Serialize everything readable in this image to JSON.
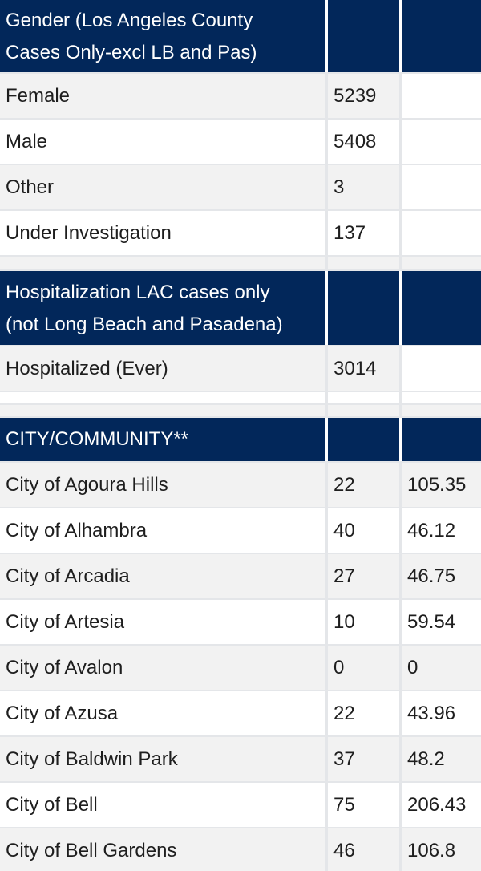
{
  "gender_section": {
    "header_line1": "Gender (Los Angeles County",
    "header_line2": "Cases Only-excl LB and Pas)",
    "rows": [
      {
        "label": "Female",
        "count": "5239",
        "rate": ""
      },
      {
        "label": "Male",
        "count": "5408",
        "rate": ""
      },
      {
        "label": "Other",
        "count": "3",
        "rate": ""
      },
      {
        "label": "Under Investigation",
        "count": "137",
        "rate": ""
      }
    ]
  },
  "hospitalization_section": {
    "header_line1": "Hospitalization LAC cases only",
    "header_line2": "(not Long Beach and Pasadena)",
    "rows": [
      {
        "label": "Hospitalized (Ever)",
        "count": "3014",
        "rate": ""
      }
    ]
  },
  "city_section": {
    "header": "CITY/COMMUNITY**",
    "rows": [
      {
        "label": "City of Agoura Hills",
        "count": "22",
        "rate": "105.35"
      },
      {
        "label": "City of Alhambra",
        "count": "40",
        "rate": "46.12"
      },
      {
        "label": "City of Arcadia",
        "count": "27",
        "rate": "46.75"
      },
      {
        "label": "City of Artesia",
        "count": "10",
        "rate": "59.54"
      },
      {
        "label": "City of Avalon",
        "count": "0",
        "rate": "0"
      },
      {
        "label": "City of Azusa",
        "count": "22",
        "rate": "43.96"
      },
      {
        "label": "City of Baldwin Park",
        "count": "37",
        "rate": "48.2"
      },
      {
        "label": "City of Bell",
        "count": "75",
        "rate": "206.43"
      },
      {
        "label": "City of Bell Gardens",
        "count": "46",
        "rate": "106.8"
      }
    ]
  },
  "colors": {
    "header_bg": "#02275a",
    "row_alt_bg": "#f2f2f2",
    "grid_line": "#e4e6e9"
  }
}
